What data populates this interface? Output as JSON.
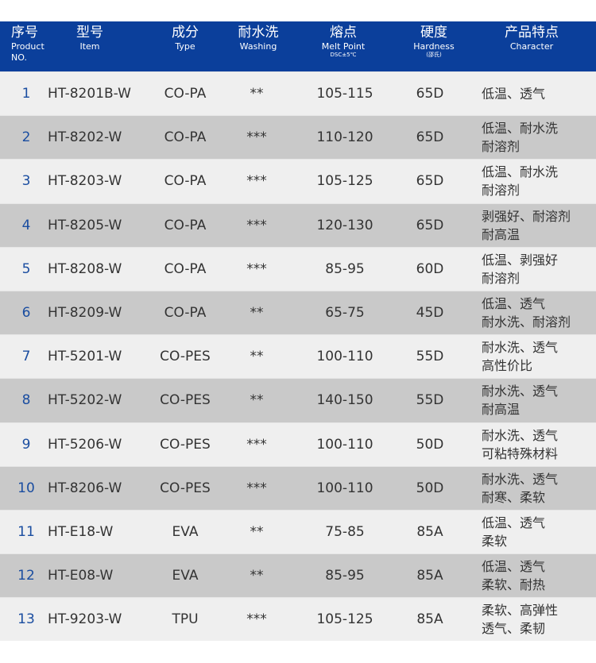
{
  "header": [
    {
      "cn": "序号",
      "en": "Product",
      "en2": "NO."
    },
    {
      "cn": "型号",
      "en": "Item"
    },
    {
      "cn": "成分",
      "en": "Type"
    },
    {
      "cn": "耐水洗",
      "en": "Washing"
    },
    {
      "cn": "熔点",
      "en": "Melt Point",
      "sub": "DSC±5℃"
    },
    {
      "cn": "硬度",
      "en": "Hardness",
      "sub": "(邵氏)"
    },
    {
      "cn": "产品特点",
      "en": "Character"
    }
  ],
  "rows": [
    {
      "no": "1",
      "item": "HT-8201B-W",
      "type": "CO-PA",
      "wash": "**",
      "melt": "105-115",
      "hard": "65D",
      "ch1": "低温、透气",
      "ch2": ""
    },
    {
      "no": "2",
      "item": "HT-8202-W",
      "type": "CO-PA",
      "wash": "***",
      "melt": "110-120",
      "hard": "65D",
      "ch1": "低温、耐水洗",
      "ch2": "耐溶剂"
    },
    {
      "no": "3",
      "item": "HT-8203-W",
      "type": "CO-PA",
      "wash": "***",
      "melt": "105-125",
      "hard": "65D",
      "ch1": "低温、耐水洗",
      "ch2": "耐溶剂"
    },
    {
      "no": "4",
      "item": "HT-8205-W",
      "type": "CO-PA",
      "wash": "***",
      "melt": "120-130",
      "hard": "65D",
      "ch1": "剥强好、耐溶剂",
      "ch2": "耐高温"
    },
    {
      "no": "5",
      "item": "HT-8208-W",
      "type": "CO-PA",
      "wash": "***",
      "melt": "85-95",
      "hard": "60D",
      "ch1": "低温、剥强好",
      "ch2": "耐溶剂"
    },
    {
      "no": "6",
      "item": "HT-8209-W",
      "type": "CO-PA",
      "wash": "**",
      "melt": "65-75",
      "hard": "45D",
      "ch1": "低温、透气",
      "ch2": "耐水洗、耐溶剂"
    },
    {
      "no": "7",
      "item": "HT-5201-W",
      "type": "CO-PES",
      "wash": "**",
      "melt": "100-110",
      "hard": "55D",
      "ch1": "耐水洗、透气",
      "ch2": "高性价比"
    },
    {
      "no": "8",
      "item": "HT-5202-W",
      "type": "CO-PES",
      "wash": "**",
      "melt": "140-150",
      "hard": "55D",
      "ch1": "耐水洗、透气",
      "ch2": "耐高温"
    },
    {
      "no": "9",
      "item": "HT-5206-W",
      "type": "CO-PES",
      "wash": "***",
      "melt": "100-110",
      "hard": "50D",
      "ch1": "耐水洗、透气",
      "ch2": "可粘特殊材料"
    },
    {
      "no": "10",
      "item": "HT-8206-W",
      "type": "CO-PES",
      "wash": "***",
      "melt": "100-110",
      "hard": "50D",
      "ch1": "耐水洗、透气",
      "ch2": "耐寒、柔软"
    },
    {
      "no": "11",
      "item": "HT-E18-W",
      "type": "EVA",
      "wash": "**",
      "melt": "75-85",
      "hard": "85A",
      "ch1": "低温、透气",
      "ch2": "柔软"
    },
    {
      "no": "12",
      "item": "HT-E08-W",
      "type": "EVA",
      "wash": "**",
      "melt": "85-95",
      "hard": "85A",
      "ch1": "低温、透气",
      "ch2": "柔软、耐热"
    },
    {
      "no": "13",
      "item": "HT-9203-W",
      "type": "TPU",
      "wash": "***",
      "melt": "105-125",
      "hard": "85A",
      "ch1": "柔软、高弹性",
      "ch2": "透气、柔韧"
    }
  ]
}
